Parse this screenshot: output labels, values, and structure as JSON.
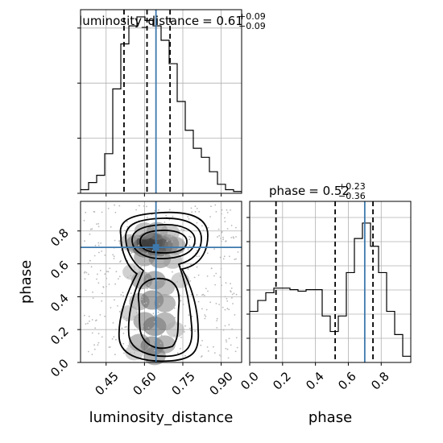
{
  "chart_data": [
    {
      "panel": "luminosity_distance-marginal",
      "type": "histogram",
      "title_param": "luminosity_distance",
      "title_value": "0.61",
      "title_upper": "+0.09",
      "title_lower": "−0.09",
      "xlim": [
        0.35,
        0.98
      ],
      "ylim": [
        0,
        0.102
      ],
      "grid": true,
      "bin_edges": [
        0.35,
        0.3815,
        0.413,
        0.4445,
        0.476,
        0.5075,
        0.539,
        0.5705,
        0.602,
        0.6335,
        0.665,
        0.6965,
        0.728,
        0.7595,
        0.791,
        0.8225,
        0.854,
        0.8855,
        0.917,
        0.9485,
        0.98
      ],
      "values": [
        0.002,
        0.006,
        0.01,
        0.022,
        0.058,
        0.083,
        0.093,
        0.098,
        0.096,
        0.093,
        0.085,
        0.072,
        0.051,
        0.035,
        0.025,
        0.02,
        0.012,
        0.005,
        0.002,
        0.001
      ],
      "quantile_lines": [
        0.52,
        0.61,
        0.7
      ],
      "truth": 0.645
    },
    {
      "panel": "phase-marginal",
      "type": "histogram",
      "title_param": "phase",
      "title_value": "0.52",
      "title_upper": "+0.23",
      "title_lower": "−0.36",
      "xlim": [
        0.0,
        0.98
      ],
      "ylim": [
        0,
        0.104
      ],
      "grid": true,
      "xlabel": "phase",
      "xticks": [
        "0.0",
        "0.2",
        "0.4",
        "0.6",
        "0.8"
      ],
      "bin_edges": [
        0.0,
        0.049,
        0.098,
        0.147,
        0.196,
        0.245,
        0.294,
        0.343,
        0.392,
        0.441,
        0.49,
        0.539,
        0.588,
        0.637,
        0.686,
        0.735,
        0.784,
        0.833,
        0.882,
        0.931,
        0.98
      ],
      "values": [
        0.033,
        0.04,
        0.045,
        0.048,
        0.048,
        0.047,
        0.046,
        0.047,
        0.047,
        0.03,
        0.02,
        0.03,
        0.058,
        0.08,
        0.09,
        0.075,
        0.058,
        0.033,
        0.018,
        0.004
      ],
      "quantile_lines": [
        0.16,
        0.52,
        0.75
      ],
      "truth": 0.7
    },
    {
      "panel": "joint-2d",
      "type": "scatter",
      "xlim": [
        0.35,
        0.98
      ],
      "ylim": [
        0.0,
        0.98
      ],
      "grid": true,
      "xlabel": "luminosity_distance",
      "ylabel": "phase",
      "xticks": [
        "0.45",
        "0.60",
        "0.75",
        "0.90"
      ],
      "yticks": [
        "0.0",
        "0.2",
        "0.4",
        "0.6",
        "0.8"
      ],
      "truth": [
        0.645,
        0.7
      ],
      "density": [
        {
          "x": 0.54,
          "y": 0.73,
          "w": 0.025
        },
        {
          "x": 0.57,
          "y": 0.72,
          "w": 0.04
        },
        {
          "x": 0.6,
          "y": 0.7,
          "w": 0.05
        },
        {
          "x": 0.62,
          "y": 0.73,
          "w": 0.06
        },
        {
          "x": 0.64,
          "y": 0.72,
          "w": 0.065
        },
        {
          "x": 0.66,
          "y": 0.71,
          "w": 0.06
        },
        {
          "x": 0.69,
          "y": 0.72,
          "w": 0.045
        },
        {
          "x": 0.72,
          "y": 0.71,
          "w": 0.035
        },
        {
          "x": 0.6,
          "y": 0.8,
          "w": 0.03
        },
        {
          "x": 0.65,
          "y": 0.8,
          "w": 0.035
        },
        {
          "x": 0.7,
          "y": 0.79,
          "w": 0.025
        },
        {
          "x": 0.6,
          "y": 0.64,
          "w": 0.035
        },
        {
          "x": 0.66,
          "y": 0.63,
          "w": 0.04
        },
        {
          "x": 0.71,
          "y": 0.62,
          "w": 0.025
        },
        {
          "x": 0.59,
          "y": 0.5,
          "w": 0.035
        },
        {
          "x": 0.64,
          "y": 0.5,
          "w": 0.04
        },
        {
          "x": 0.68,
          "y": 0.46,
          "w": 0.03
        },
        {
          "x": 0.58,
          "y": 0.37,
          "w": 0.03
        },
        {
          "x": 0.63,
          "y": 0.38,
          "w": 0.045
        },
        {
          "x": 0.68,
          "y": 0.36,
          "w": 0.035
        },
        {
          "x": 0.6,
          "y": 0.25,
          "w": 0.04
        },
        {
          "x": 0.64,
          "y": 0.22,
          "w": 0.045
        },
        {
          "x": 0.68,
          "y": 0.25,
          "w": 0.035
        },
        {
          "x": 0.58,
          "y": 0.12,
          "w": 0.035
        },
        {
          "x": 0.63,
          "y": 0.1,
          "w": 0.045
        },
        {
          "x": 0.68,
          "y": 0.11,
          "w": 0.035
        },
        {
          "x": 0.64,
          "y": 0.04,
          "w": 0.04
        },
        {
          "x": 0.54,
          "y": 0.3,
          "w": 0.02
        },
        {
          "x": 0.72,
          "y": 0.2,
          "w": 0.02
        },
        {
          "x": 0.55,
          "y": 0.55,
          "w": 0.02
        },
        {
          "x": 0.74,
          "y": 0.5,
          "w": 0.02
        },
        {
          "x": 0.56,
          "y": 0.06,
          "w": 0.02
        }
      ]
    }
  ]
}
